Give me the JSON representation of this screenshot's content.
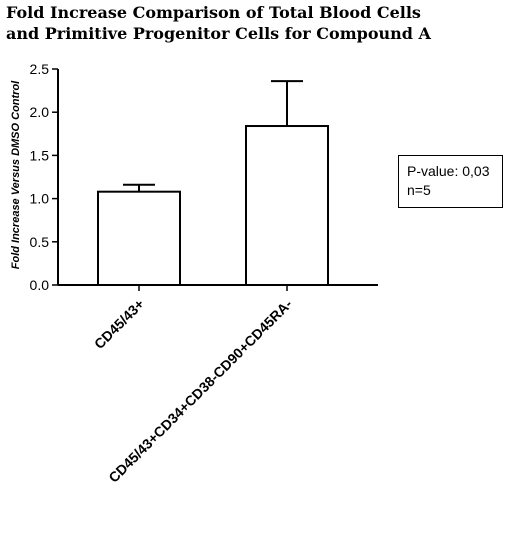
{
  "chart_data": {
    "type": "bar",
    "title_lines": [
      "Fold Increase Comparison of Total Blood Cells",
      "and Primitive Progenitor Cells for Compound A"
    ],
    "ylabel": "Fold Increase Versus DMSO Control",
    "xlabel": "",
    "categories": [
      "CD45/43+",
      "CD45/43+CD34+CD38-CD90+CD45RA-"
    ],
    "values": [
      1.08,
      1.84
    ],
    "error_upper": [
      0.08,
      0.52
    ],
    "ylim": [
      0,
      2.5
    ],
    "yticks": [
      "0.0",
      "0.5",
      "1.0",
      "1.5",
      "2.0",
      "2.5"
    ],
    "grid": false,
    "annotation": [
      "P-value: 0,03",
      "n=5"
    ]
  }
}
